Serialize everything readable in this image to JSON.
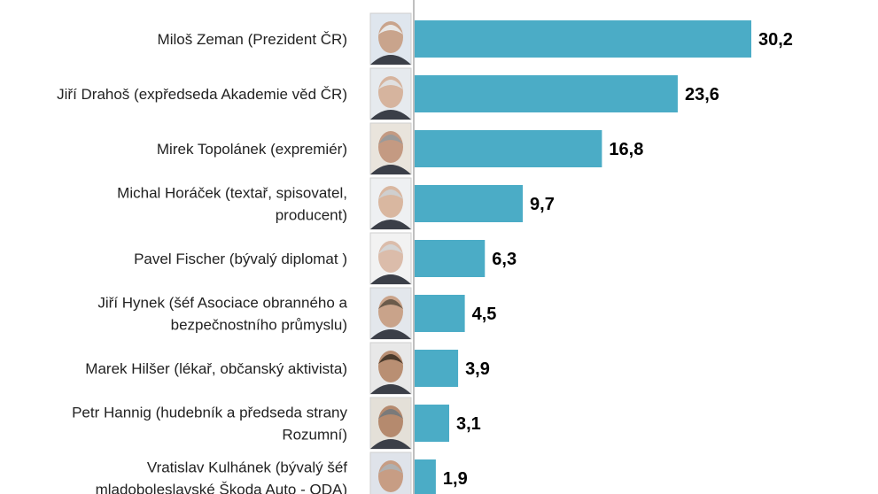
{
  "chart_data": {
    "type": "bar",
    "orientation": "horizontal",
    "categories": [
      [
        "Miloš Zeman (Prezident ČR)"
      ],
      [
        "Jiří Drahoš (expředseda Akademie věd ČR)"
      ],
      [
        "Mirek Topolánek (expremiér)"
      ],
      [
        "Michal Horáček (textař, spisovatel,",
        "producent)"
      ],
      [
        "Pavel Fischer (bývalý diplomat )"
      ],
      [
        "Jiří Hynek (šéf Asociace obranného a",
        "bezpečnostního průmyslu)"
      ],
      [
        "Marek Hilšer (lékař, občanský aktivista)"
      ],
      [
        "Petr Hannig (hudebník a předseda strany",
        "Rozumní)"
      ],
      [
        "Vratislav Kulhánek (bývalý šéf",
        "mladoboleslavské Škoda Auto - ODA)"
      ]
    ],
    "values": [
      30.2,
      23.6,
      16.8,
      9.7,
      6.3,
      4.5,
      3.9,
      3.1,
      1.9
    ],
    "value_labels": [
      "30,2",
      "23,6",
      "16,8",
      "9,7",
      "6,3",
      "4,5",
      "3,9",
      "3,1",
      "1,9"
    ],
    "xlim": [
      0,
      30.2
    ],
    "bar_color": "#4bacc6",
    "axis_color": "#7f7f7f",
    "photos": [
      "photo-zeman",
      "photo-drahos",
      "photo-topolanek",
      "photo-horacek",
      "photo-fischer",
      "photo-hynek",
      "photo-hilser",
      "photo-hannig",
      "photo-kulhanek"
    ],
    "title": "",
    "xlabel": "",
    "ylabel": "",
    "grid": false,
    "legend": "none"
  }
}
